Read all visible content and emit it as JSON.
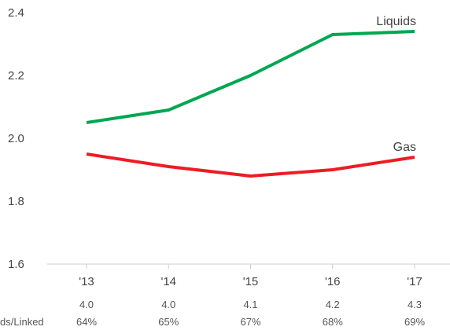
{
  "chart_data": {
    "type": "line",
    "title": "",
    "xlabel": "",
    "ylabel": "",
    "categories": [
      "'13",
      "'14",
      "'15",
      "'16",
      "'17"
    ],
    "ylim": [
      1.6,
      2.4
    ],
    "yticks": [
      "1.6",
      "1.8",
      "2.0",
      "2.2",
      "2.4"
    ],
    "grid": false,
    "legend": "inline-labels",
    "series": [
      {
        "name": "Liquids",
        "color": "#00a651",
        "values": [
          2.05,
          2.09,
          2.2,
          2.33,
          2.34
        ]
      },
      {
        "name": "Gas",
        "color": "#ed1c24",
        "values": [
          1.95,
          1.91,
          1.88,
          1.9,
          1.94
        ]
      }
    ],
    "table": {
      "row_label": "ds/Linked",
      "row1": [
        "4.0",
        "4.0",
        "4.1",
        "4.2",
        "4.3"
      ],
      "row2": [
        "64%",
        "65%",
        "67%",
        "68%",
        "69%"
      ]
    }
  }
}
